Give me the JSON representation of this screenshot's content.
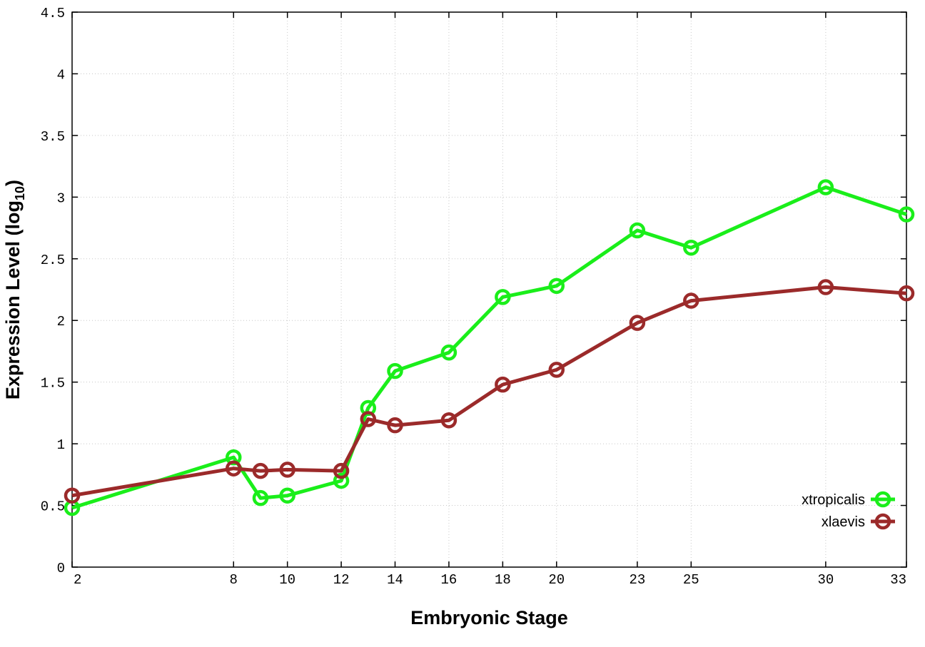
{
  "chart_data": {
    "type": "line",
    "x": [
      2,
      8,
      9,
      10,
      12,
      13,
      14,
      16,
      18,
      20,
      23,
      25,
      30,
      33
    ],
    "series": [
      {
        "name": "xtropicalis",
        "color": "#1aee1a",
        "values": [
          0.48,
          0.89,
          0.56,
          0.58,
          0.7,
          1.29,
          1.59,
          1.74,
          2.19,
          2.28,
          2.73,
          2.59,
          3.08,
          2.86
        ]
      },
      {
        "name": "xlaevis",
        "color": "#9b2a2a",
        "values": [
          0.58,
          0.8,
          0.78,
          0.79,
          0.78,
          1.2,
          1.15,
          1.19,
          1.48,
          1.6,
          1.98,
          2.16,
          2.27,
          2.22
        ]
      }
    ],
    "xticks": [
      2,
      8,
      10,
      12,
      14,
      16,
      18,
      20,
      23,
      25,
      30,
      33
    ],
    "yticks": [
      0,
      0.5,
      1,
      1.5,
      2,
      2.5,
      3,
      3.5,
      4,
      4.5
    ],
    "xlim": [
      2,
      33
    ],
    "ylim": [
      0,
      4.5
    ],
    "xlabel": "Embryonic Stage",
    "ylabel_main": "Expression Level (log",
    "ylabel_sub": "10",
    "ylabel_close": ")",
    "grid": true,
    "legend": "bottom-right"
  }
}
